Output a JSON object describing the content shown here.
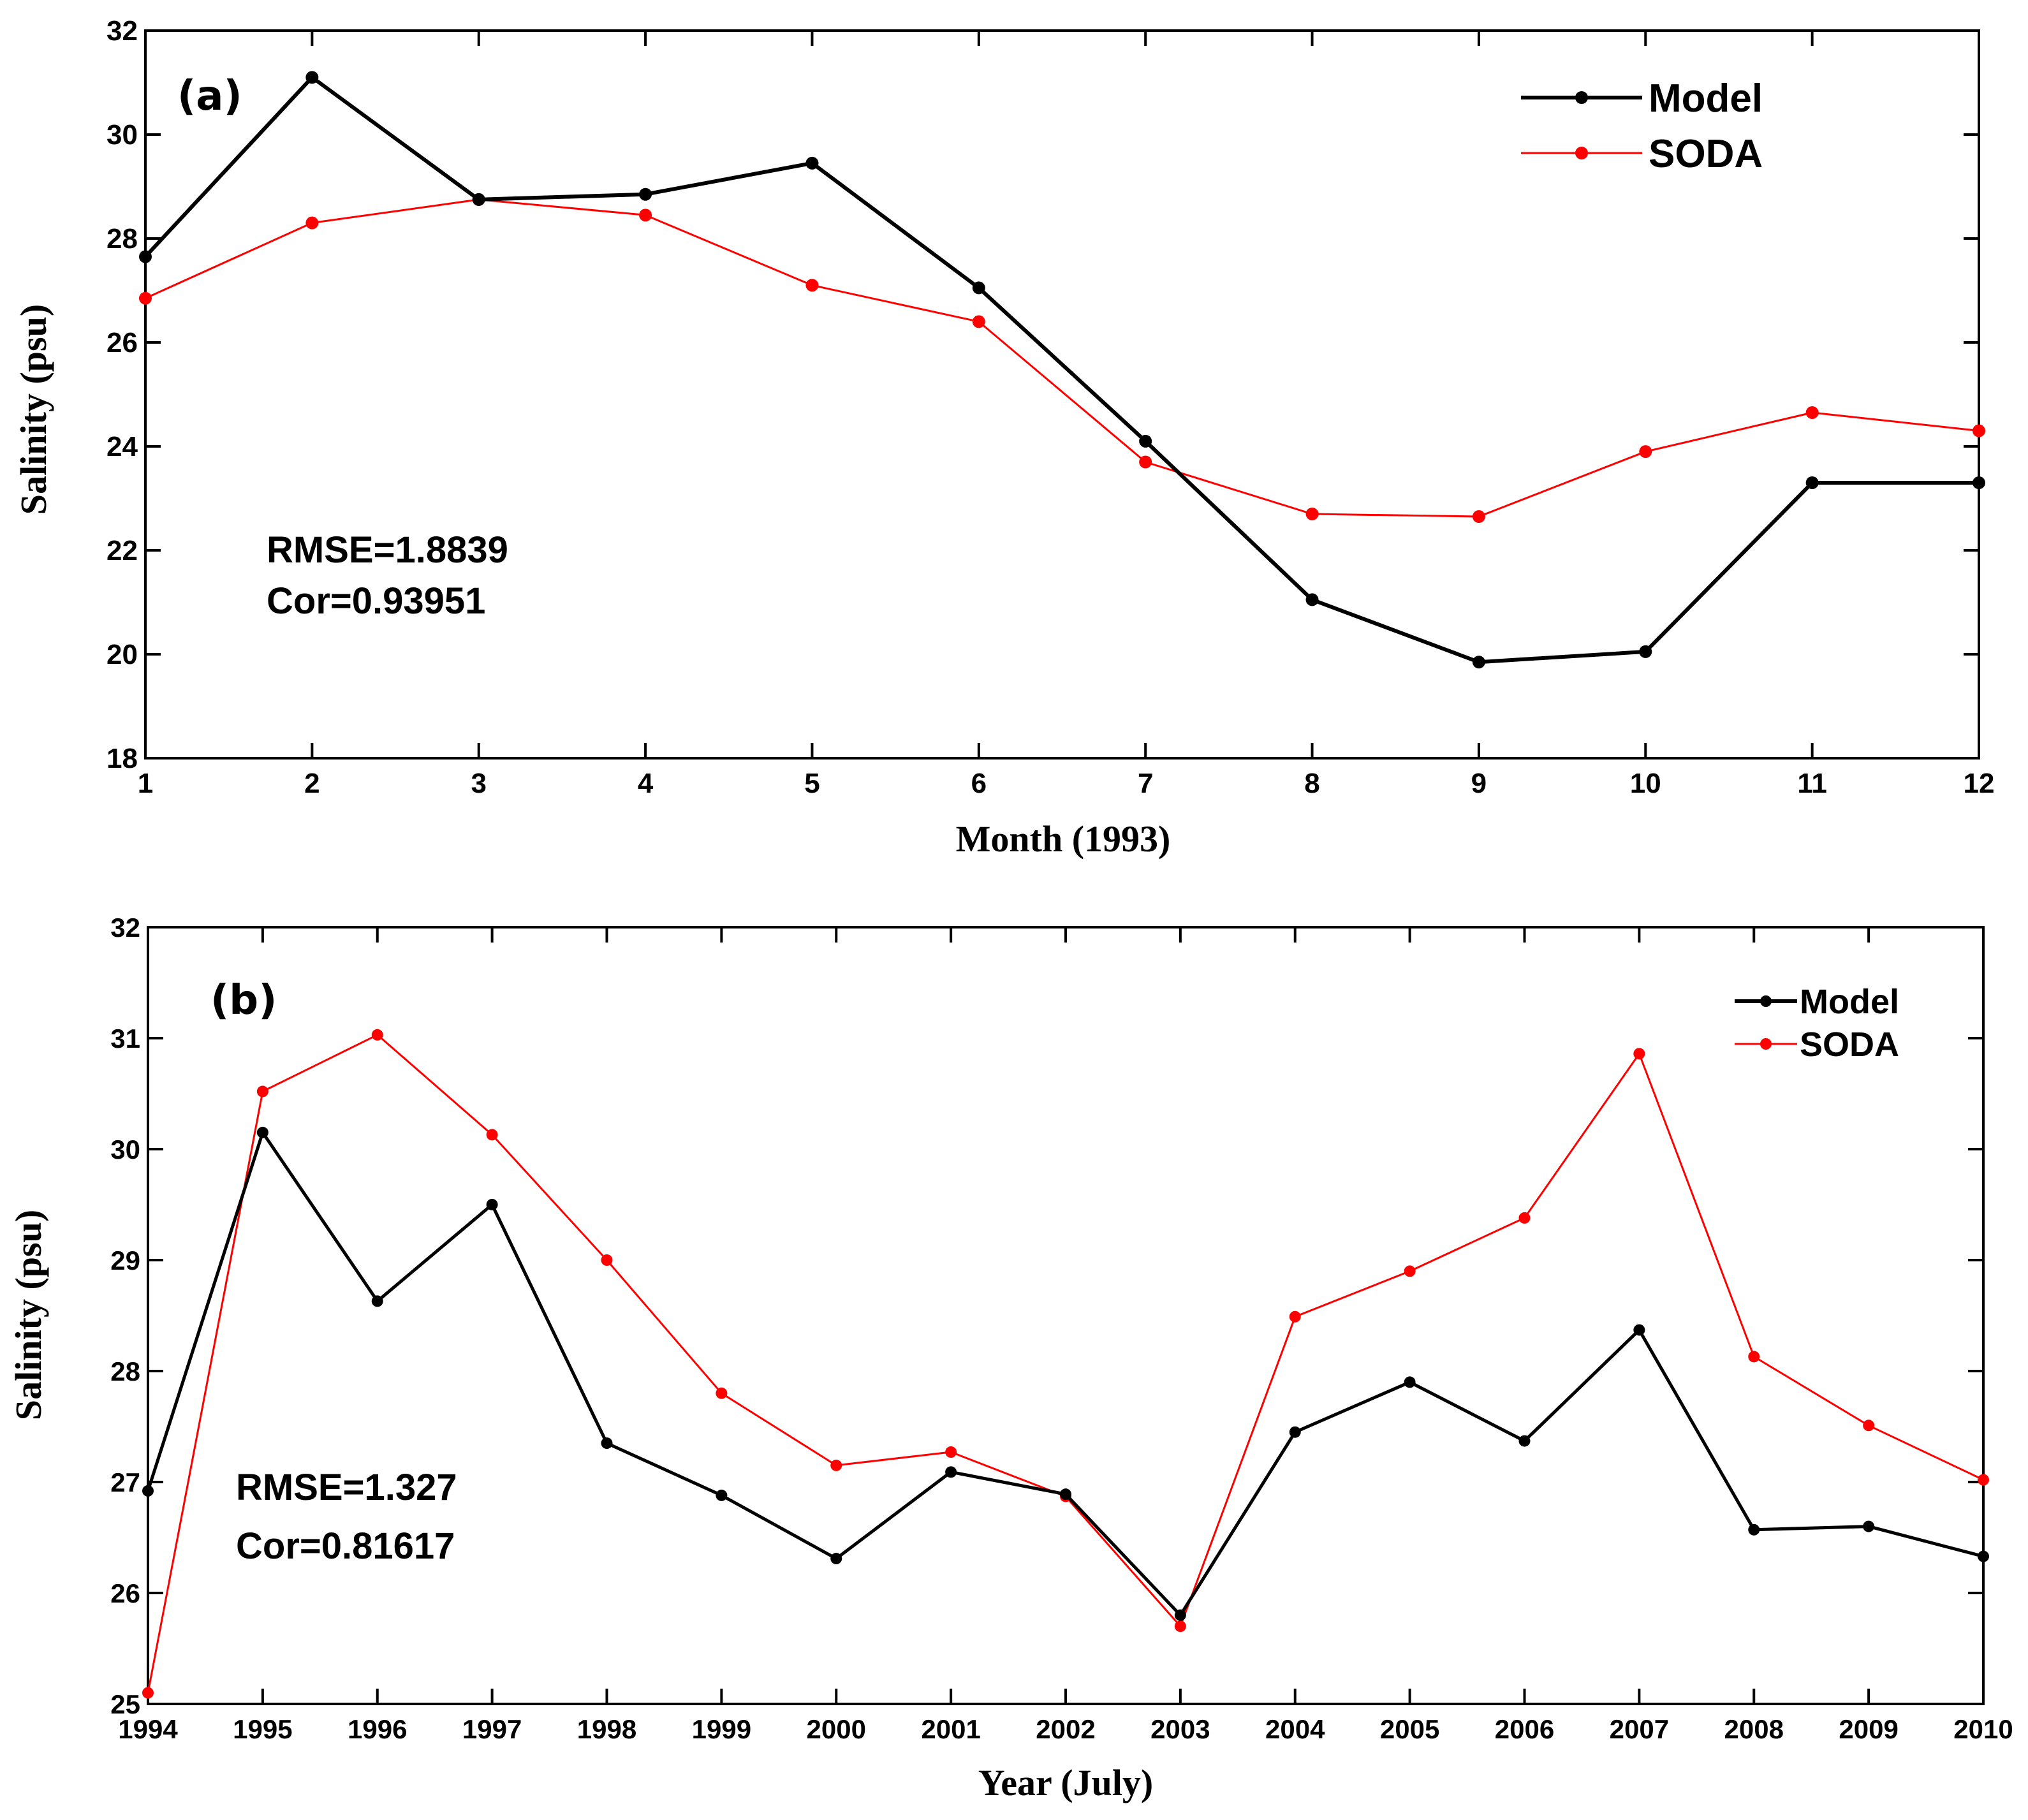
{
  "chart_data": [
    {
      "type": "line",
      "panel_label": "(a)",
      "xlabel": "Month (1993)",
      "ylabel": "Salinity (psu)",
      "categories": [
        "1",
        "2",
        "3",
        "4",
        "5",
        "6",
        "7",
        "8",
        "9",
        "10",
        "11",
        "12"
      ],
      "x": [
        1,
        2,
        3,
        4,
        5,
        6,
        7,
        8,
        9,
        10,
        11,
        12
      ],
      "xlim": [
        1,
        12
      ],
      "ylim": [
        18,
        32
      ],
      "yticks": [
        18,
        20,
        22,
        24,
        26,
        28,
        30,
        32
      ],
      "series": [
        {
          "name": "Model",
          "color": "#000000",
          "values": [
            27.65,
            31.1,
            28.75,
            28.85,
            29.45,
            27.05,
            24.1,
            21.05,
            19.85,
            20.05,
            23.3,
            23.3
          ]
        },
        {
          "name": "SODA",
          "color": "#ff0000",
          "values": [
            26.85,
            28.3,
            28.75,
            28.45,
            27.1,
            26.4,
            23.7,
            22.7,
            22.65,
            23.9,
            24.65,
            24.3
          ]
        }
      ],
      "legend_position": "top-right",
      "annotations": [
        "RMSE=1.8839",
        "Cor=0.93951"
      ]
    },
    {
      "type": "line",
      "panel_label": "(b)",
      "xlabel": "Year (July)",
      "ylabel": "Salinity (psu)",
      "categories": [
        "1994",
        "1995",
        "1996",
        "1997",
        "1998",
        "1999",
        "2000",
        "2001",
        "2002",
        "2003",
        "2004",
        "2005",
        "2006",
        "2007",
        "2008",
        "2009",
        "2010"
      ],
      "x": [
        1994,
        1995,
        1996,
        1997,
        1998,
        1999,
        2000,
        2001,
        2002,
        2003,
        2004,
        2005,
        2006,
        2007,
        2008,
        2009,
        2010
      ],
      "xlim": [
        1994,
        2010
      ],
      "ylim": [
        25,
        32
      ],
      "yticks": [
        25,
        26,
        27,
        28,
        29,
        30,
        31,
        32
      ],
      "series": [
        {
          "name": "Model",
          "color": "#000000",
          "values": [
            26.92,
            30.15,
            28.63,
            29.5,
            27.35,
            26.88,
            26.31,
            27.09,
            26.89,
            25.8,
            27.45,
            27.9,
            27.37,
            28.37,
            26.57,
            26.6,
            26.33
          ]
        },
        {
          "name": "SODA",
          "color": "#ff0000",
          "values": [
            25.1,
            30.52,
            31.03,
            30.13,
            29.0,
            27.8,
            27.15,
            27.27,
            26.87,
            25.7,
            28.49,
            28.9,
            29.38,
            30.86,
            28.13,
            27.51,
            27.02
          ]
        }
      ],
      "legend_position": "top-right",
      "annotations": [
        "RMSE=1.327",
        "Cor=0.81617"
      ]
    }
  ]
}
